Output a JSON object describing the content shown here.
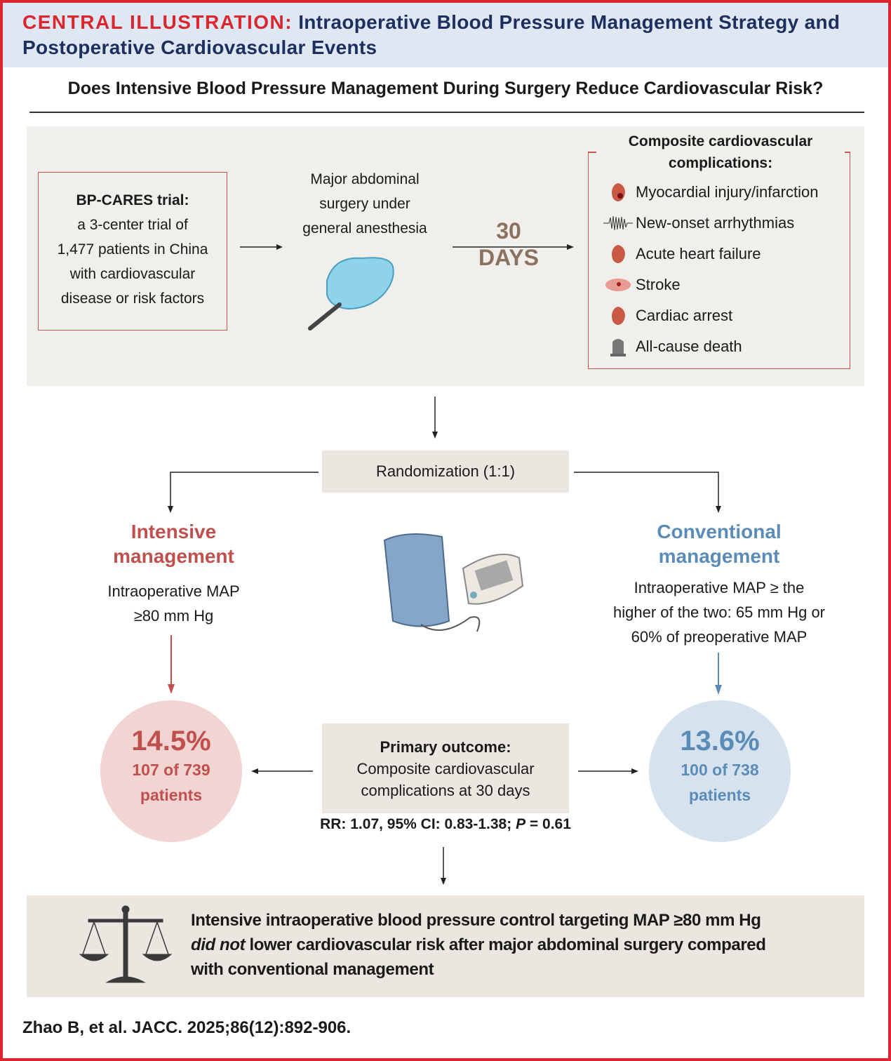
{
  "header": {
    "label": "CENTRAL ILLUSTRATION:",
    "title": "Intraoperative Blood Pressure Management Strategy and Postoperative Cardiovascular Events"
  },
  "question": "Does Intensive Blood Pressure Management During Surgery Reduce Cardiovascular Risk?",
  "trial": {
    "title": "BP-CARES trial:",
    "lines": [
      "a 3-center trial of",
      "1,477 patients in China",
      "with cardiovascular",
      "disease or risk factors"
    ]
  },
  "surgery": {
    "lines": [
      "Major abdominal",
      "surgery under",
      "general anesthesia"
    ]
  },
  "followup": {
    "number": "30",
    "unit": "DAYS"
  },
  "composite": {
    "title": "Composite cardiovascular complications:",
    "items": [
      {
        "label": "Myocardial injury/infarction",
        "icon": "heart-icon"
      },
      {
        "label": "New-onset arrhythmias",
        "icon": "ecg-icon"
      },
      {
        "label": "Acute heart failure",
        "icon": "heart-icon"
      },
      {
        "label": "Stroke",
        "icon": "brain-icon"
      },
      {
        "label": "Cardiac arrest",
        "icon": "heart-icon"
      },
      {
        "label": "All-cause death",
        "icon": "tombstone-icon"
      }
    ]
  },
  "randomization": "Randomization (1:1)",
  "intensive": {
    "title_1": "Intensive",
    "title_2": "management",
    "desc_1": "Intraoperative MAP",
    "desc_2": "≥80 mm Hg",
    "pct": "14.5%",
    "count": "107 of 739",
    "unit": "patients",
    "color": "#c0504d"
  },
  "conventional": {
    "title_1": "Conventional",
    "title_2": "management",
    "desc_1": "Intraoperative MAP ≥ the",
    "desc_2": "higher of the two: 65 mm Hg or",
    "desc_3": "60% of preoperative MAP",
    "pct": "13.6%",
    "count": "100 of 738",
    "unit": "patients",
    "color": "#5b8cb8"
  },
  "primary": {
    "title": "Primary outcome:",
    "line1": "Composite cardiovascular",
    "line2": "complications at 30 days"
  },
  "stats": {
    "pre": "RR: 1.07, 95% CI: 0.83-1.38; ",
    "p": "P",
    "post": " = 0.61"
  },
  "conclusion": {
    "line1": "Intensive intraoperative blood pressure control targeting MAP ≥80 mm Hg",
    "em": "did not",
    "line2": " lower cardiovascular risk after major abdominal surgery compared",
    "line3": "with conventional management"
  },
  "citation": "Zhao B, et al. JACC. 2025;86(12):892-906."
}
